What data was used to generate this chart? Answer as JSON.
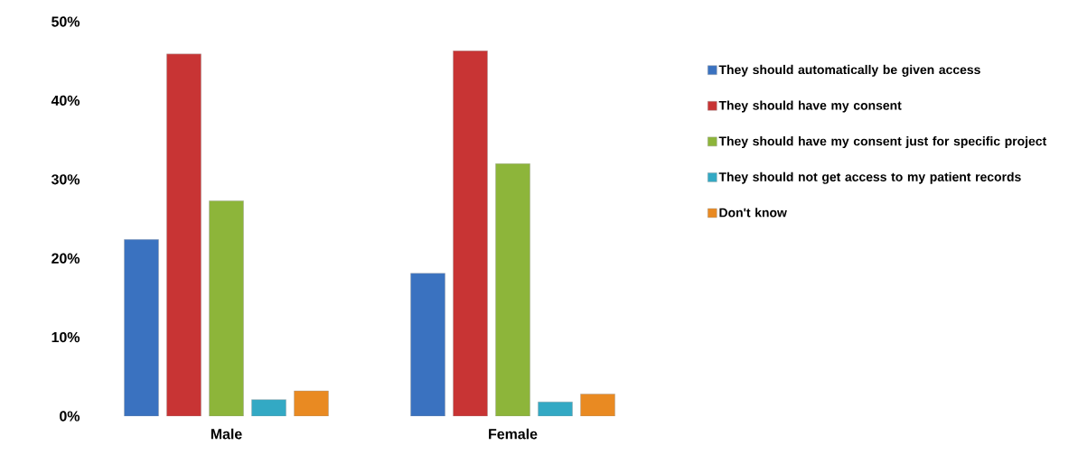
{
  "chart_data": {
    "type": "bar",
    "categories": [
      "Male",
      "Female"
    ],
    "series": [
      {
        "name": "They should automatically be given access",
        "color": "#3a72c0",
        "values": [
          22.4,
          18.1
        ]
      },
      {
        "name": "They should have my consent",
        "color": "#c83434",
        "values": [
          45.9,
          46.3
        ]
      },
      {
        "name": "They should have my consent just for specific project",
        "color": "#8db53a",
        "values": [
          27.3,
          32.0
        ]
      },
      {
        "name": "They should not get access to my patient records",
        "color": "#33a9c4",
        "values": [
          2.1,
          1.8
        ]
      },
      {
        "name": "Don't know",
        "color": "#e98a22",
        "values": [
          3.2,
          2.8
        ]
      }
    ],
    "ylim": [
      0,
      50
    ],
    "yticks": [
      {
        "value": 0,
        "label": "0%"
      },
      {
        "value": 10,
        "label": "10%"
      },
      {
        "value": 20,
        "label": "20%"
      },
      {
        "value": 30,
        "label": "30%"
      },
      {
        "value": 40,
        "label": "40%"
      },
      {
        "value": 50,
        "label": "50%"
      }
    ],
    "legend": "right"
  }
}
